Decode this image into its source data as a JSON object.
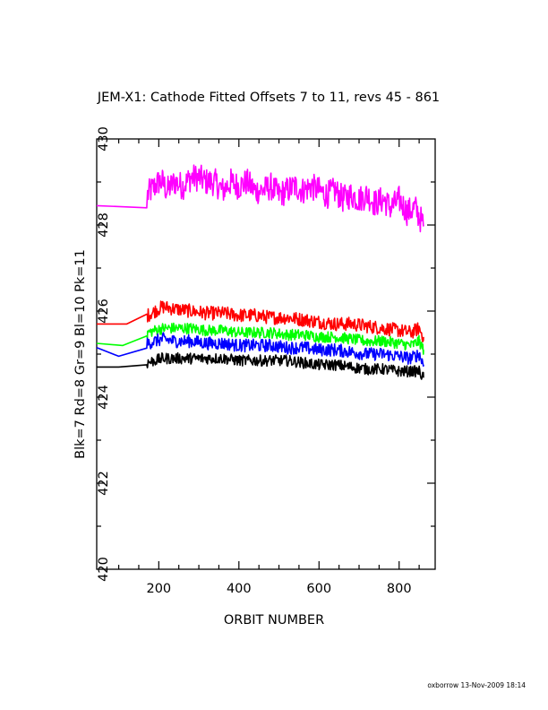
{
  "footer": "oxborrow 13-Nov-2009 18:14",
  "chart_data": {
    "type": "line",
    "title": "JEM-X1: Cathode Fitted Offsets 7 to 11, revs 45 - 861",
    "xlabel": "ORBIT NUMBER",
    "ylabel": "Blk=7 Rd=8 Gr=9 Bl=10 Pk=11",
    "xlim": [
      45,
      890
    ],
    "ylim": [
      420,
      430
    ],
    "x_ticks": [
      200,
      400,
      600,
      800
    ],
    "x_tick_labels": [
      "200",
      "400",
      "600",
      "800"
    ],
    "y_ticks": [
      420,
      422,
      424,
      426,
      428,
      430
    ],
    "y_tick_labels": [
      "420",
      "422",
      "424",
      "426",
      "428",
      "430"
    ],
    "grid": false,
    "legend": "none",
    "noise_note": "dense orbit-to-orbit jitter; series drawn from revs 45-861",
    "series": [
      {
        "color": "#ff00ff",
        "x": [
          45,
          170,
          172,
          180,
          190,
          200,
          210,
          220,
          240,
          260,
          280,
          300,
          320,
          340,
          360,
          380,
          400,
          420,
          440,
          460,
          480,
          500,
          520,
          540,
          560,
          580,
          600,
          620,
          640,
          660,
          680,
          700,
          720,
          740,
          760,
          780,
          800,
          820,
          840,
          850,
          861
        ],
        "y": [
          428.45,
          428.4,
          428.7,
          428.8,
          428.9,
          429.0,
          429.0,
          428.8,
          429.0,
          428.9,
          429.1,
          429.1,
          429.0,
          429.0,
          428.8,
          429.0,
          428.9,
          429.0,
          428.8,
          428.8,
          428.9,
          428.7,
          428.8,
          428.9,
          428.8,
          428.9,
          428.8,
          428.7,
          428.8,
          428.6,
          428.7,
          428.6,
          428.7,
          428.5,
          428.6,
          428.4,
          428.6,
          428.3,
          428.4,
          428.2,
          428.0
        ],
        "noise": 0.32
      },
      {
        "color": "#ff0000",
        "x": [
          45,
          120,
          170,
          172,
          190,
          210,
          240,
          280,
          320,
          360,
          400,
          440,
          480,
          520,
          560,
          600,
          640,
          680,
          720,
          760,
          800,
          830,
          850,
          861
        ],
        "y": [
          425.7,
          425.7,
          425.85,
          425.9,
          426.0,
          426.1,
          426.05,
          426.0,
          425.95,
          425.95,
          425.9,
          425.9,
          425.85,
          425.85,
          425.8,
          425.75,
          425.7,
          425.7,
          425.65,
          425.6,
          425.55,
          425.5,
          425.6,
          425.4
        ],
        "noise": 0.16
      },
      {
        "color": "#00ff00",
        "x": [
          45,
          110,
          170,
          172,
          190,
          210,
          240,
          280,
          320,
          360,
          400,
          440,
          480,
          520,
          560,
          600,
          640,
          680,
          720,
          760,
          800,
          830,
          850,
          861
        ],
        "y": [
          425.25,
          425.2,
          425.3,
          425.5,
          425.55,
          425.6,
          425.6,
          425.6,
          425.55,
          425.55,
          425.5,
          425.5,
          425.5,
          425.45,
          425.45,
          425.4,
          425.4,
          425.35,
          425.3,
          425.3,
          425.25,
          425.2,
          425.3,
          425.1
        ],
        "noise": 0.13
      },
      {
        "color": "#0000ff",
        "x": [
          45,
          100,
          170,
          172,
          190,
          210,
          240,
          280,
          320,
          360,
          400,
          440,
          480,
          520,
          560,
          600,
          640,
          680,
          720,
          760,
          800,
          830,
          850,
          861
        ],
        "y": [
          425.15,
          424.95,
          425.2,
          425.25,
          425.3,
          425.35,
          425.3,
          425.3,
          425.25,
          425.25,
          425.2,
          425.2,
          425.2,
          425.15,
          425.15,
          425.1,
          425.1,
          425.05,
          425.0,
          425.0,
          424.95,
          424.9,
          425.0,
          424.75
        ],
        "noise": 0.15
      },
      {
        "color": "#000000",
        "x": [
          45,
          100,
          170,
          172,
          190,
          210,
          240,
          280,
          320,
          360,
          400,
          440,
          480,
          520,
          560,
          600,
          640,
          680,
          720,
          760,
          800,
          830,
          850,
          861
        ],
        "y": [
          424.7,
          424.7,
          424.75,
          424.8,
          424.85,
          424.9,
          424.9,
          424.9,
          424.9,
          424.9,
          424.85,
          424.85,
          424.85,
          424.85,
          424.8,
          424.75,
          424.75,
          424.7,
          424.65,
          424.65,
          424.6,
          424.6,
          424.6,
          424.45
        ],
        "noise": 0.13
      }
    ]
  }
}
